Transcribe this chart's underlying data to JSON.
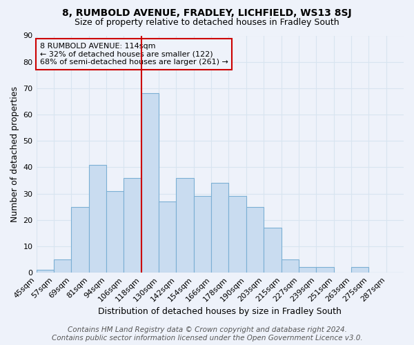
{
  "title": "8, RUMBOLD AVENUE, FRADLEY, LICHFIELD, WS13 8SJ",
  "subtitle": "Size of property relative to detached houses in Fradley South",
  "xlabel": "Distribution of detached houses by size in Fradley South",
  "ylabel": "Number of detached properties",
  "bar_color": "#c9dcf0",
  "bar_edge_color": "#7bafd4",
  "bin_labels": [
    "45sqm",
    "57sqm",
    "69sqm",
    "81sqm",
    "94sqm",
    "106sqm",
    "118sqm",
    "130sqm",
    "142sqm",
    "154sqm",
    "166sqm",
    "178sqm",
    "190sqm",
    "203sqm",
    "215sqm",
    "227sqm",
    "239sqm",
    "251sqm",
    "263sqm",
    "275sqm",
    "287sqm"
  ],
  "bar_heights": [
    1,
    5,
    25,
    41,
    31,
    36,
    68,
    27,
    36,
    29,
    34,
    29,
    25,
    17,
    5,
    2,
    2,
    0,
    2,
    0,
    0
  ],
  "ylim": [
    0,
    90
  ],
  "yticks": [
    0,
    10,
    20,
    30,
    40,
    50,
    60,
    70,
    80,
    90
  ],
  "vline_x": 6,
  "vline_color": "#cc0000",
  "annotation_title": "8 RUMBOLD AVENUE: 114sqm",
  "annotation_line1": "← 32% of detached houses are smaller (122)",
  "annotation_line2": "68% of semi-detached houses are larger (261) →",
  "annotation_box_color": "#cc0000",
  "footer_line1": "Contains HM Land Registry data © Crown copyright and database right 2024.",
  "footer_line2": "Contains public sector information licensed under the Open Government Licence v3.0.",
  "background_color": "#eef2fa",
  "grid_color": "#d8e4f0",
  "title_fontsize": 10,
  "subtitle_fontsize": 9,
  "xlabel_fontsize": 9,
  "ylabel_fontsize": 9,
  "tick_fontsize": 8,
  "footer_fontsize": 7.5
}
